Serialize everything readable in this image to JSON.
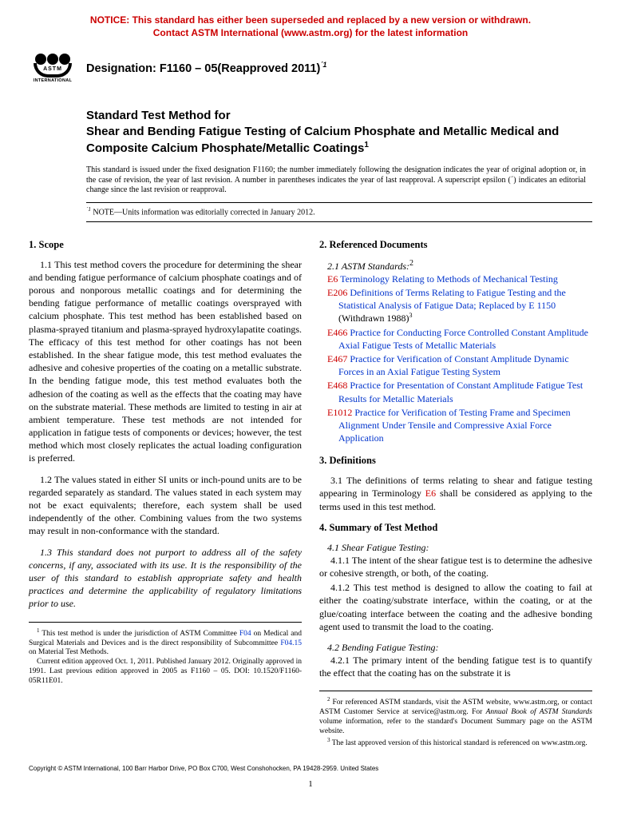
{
  "notice": {
    "line1": "NOTICE: This standard has either been superseded and replaced by a new version or withdrawn.",
    "line2": "Contact ASTM International (www.astm.org) for the latest information"
  },
  "logo": {
    "text": "ASTM",
    "sub": "INTERNATIONAL"
  },
  "designation": {
    "label": "Designation: F1160 – 05(Reapproved 2011)",
    "sup": "´1"
  },
  "title": {
    "pre": "Standard Test Method for",
    "main": "Shear and Bending Fatigue Testing of Calcium Phosphate and Metallic Medical and Composite Calcium Phosphate/Metallic Coatings",
    "sup": "1"
  },
  "issuance": "This standard is issued under the fixed designation F1160; the number immediately following the designation indicates the year of original adoption or, in the case of revision, the year of last revision. A number in parentheses indicates the year of last reapproval. A superscript epsilon (´) indicates an editorial change since the last revision or reapproval.",
  "edit_note": {
    "sup": "´1",
    "label": " NOTE—Units information was editorially corrected in January 2012."
  },
  "s1": {
    "head": "1. Scope",
    "p11": "1.1 This test method covers the procedure for determining the shear and bending fatigue performance of calcium phosphate coatings and of porous and nonporous metallic coatings and for determining the bending fatigue performance of metallic coatings oversprayed with calcium phosphate. This test method has been established based on plasma-sprayed titanium and plasma-sprayed hydroxylapatite coatings. The efficacy of this test method for other coatings has not been established. In the shear fatigue mode, this test method evaluates the adhesive and cohesive properties of the coating on a metallic substrate. In the bending fatigue mode, this test method evaluates both the adhesion of the coating as well as the effects that the coating may have on the substrate material. These methods are limited to testing in air at ambient temperature. These test methods are not intended for application in fatigue tests of components or devices; however, the test method which most closely replicates the actual loading configuration is preferred.",
    "p12": "1.2 The values stated in either SI units or inch-pound units are to be regarded separately as standard. The values stated in each system may not be exact equivalents; therefore, each system shall be used independently of the other. Combining values from the two systems may result in non-conformance with the standard.",
    "p13": "1.3 This standard does not purport to address all of the safety concerns, if any, associated with its use. It is the responsibility of the user of this standard to establish appropriate safety and health practices and determine the applicability of regulatory limitations prior to use."
  },
  "s2": {
    "head": "2. Referenced Documents",
    "sub": "2.1 ASTM Standards:",
    "sup": "2",
    "refs": [
      {
        "code": "E6",
        "desc": "Terminology Relating to Methods of Mechanical Testing"
      },
      {
        "code": "E206",
        "desc": "Definitions of Terms Relating to Fatigue Testing and the Statistical Analysis of Fatigue Data; Replaced by E 1150",
        "tail": " (Withdrawn 1988)",
        "tsup": "3"
      },
      {
        "code": "E466",
        "desc": "Practice for Conducting Force Controlled Constant Amplitude Axial Fatigue Tests of Metallic Materials"
      },
      {
        "code": "E467",
        "desc": "Practice for Verification of Constant Amplitude Dynamic Forces in an Axial Fatigue Testing System"
      },
      {
        "code": "E468",
        "desc": "Practice for Presentation of Constant Amplitude Fatigue Test Results for Metallic Materials"
      },
      {
        "code": "E1012",
        "desc": "Practice for Verification of Testing Frame and Specimen Alignment Under Tensile and Compressive Axial Force Application"
      }
    ]
  },
  "s3": {
    "head": "3. Definitions",
    "p31a": "3.1 The definitions of terms relating to shear and fatigue testing appearing in Terminology ",
    "p31ref": "E6",
    "p31b": " shall be considered as applying to the terms used in this test method."
  },
  "s4": {
    "head": "4. Summary of Test Method",
    "p41h": "4.1 Shear Fatigue Testing:",
    "p411": "4.1.1 The intent of the shear fatigue test is to determine the adhesive or cohesive strength, or both, of the coating.",
    "p412": "4.1.2 This test method is designed to allow the coating to fail at either the coating/substrate interface, within the coating, or at the glue/coating interface between the coating and the adhesive bonding agent used to transmit the load to the coating.",
    "p42h": "4.2 Bending Fatigue Testing:",
    "p421": "4.2.1 The primary intent of the bending fatigue test is to quantify the effect that the coating has on the substrate it is"
  },
  "fn_left": {
    "p1a": " This test method is under the jurisdiction of ASTM Committee ",
    "p1l1": "F04",
    "p1b": " on Medical and Surgical Materials and Devices and is the direct responsibility of Subcommittee ",
    "p1l2": "F04.15",
    "p1c": " on Material Test Methods.",
    "p2": "Current edition approved Oct. 1, 2011. Published January 2012. Originally approved in 1991. Last previous edition approved in 2005 as F1160 – 05. DOI: 10.1520/F1160-05R11E01."
  },
  "fn_right": {
    "p1a": " For referenced ASTM standards, visit the ASTM website, www.astm.org, or contact ASTM Customer Service at service@astm.org. For ",
    "p1i": "Annual Book of ASTM Standards",
    "p1b": " volume information, refer to the standard's Document Summary page on the ASTM website.",
    "p2": " The last approved version of this historical standard is referenced on www.astm.org."
  },
  "copyright": "Copyright © ASTM International, 100 Barr Harbor Drive, PO Box C700, West Conshohocken, PA 19428-2959. United States",
  "page": "1"
}
